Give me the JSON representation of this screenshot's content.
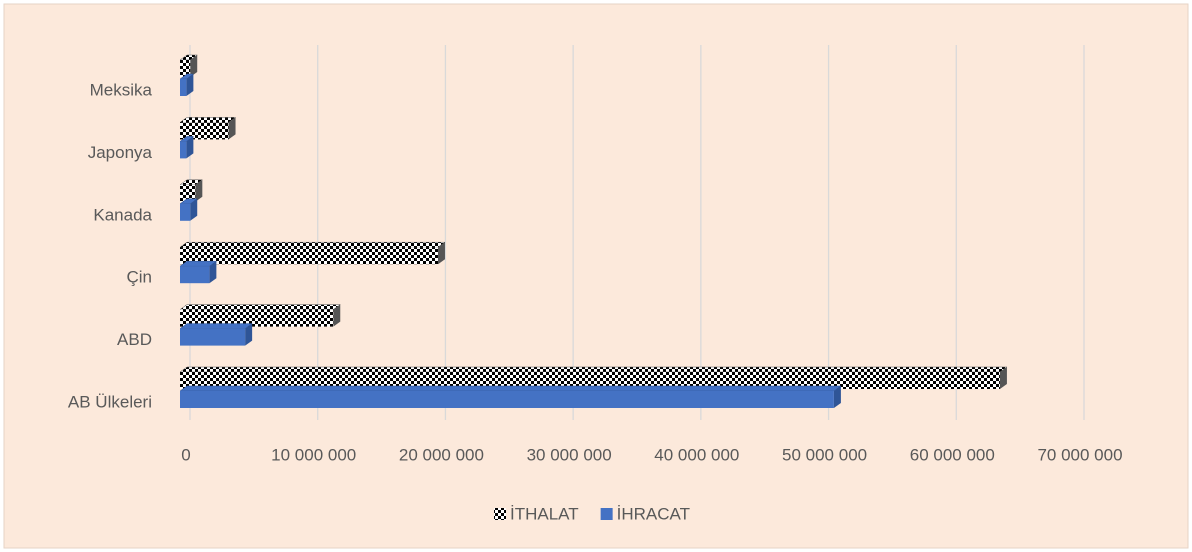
{
  "chart_data": {
    "type": "bar",
    "orientation": "horizontal",
    "three_d": true,
    "categories": [
      "AB Ülkeleri",
      "ABD",
      "Çin",
      "Kanada",
      "Japonya",
      "Meksika"
    ],
    "series": [
      {
        "name": "İTHALAT",
        "color": "#000000",
        "pattern": "checkerboard",
        "values": [
          64200000,
          12000000,
          20200000,
          1200000,
          3800000,
          800000
        ]
      },
      {
        "name": "İHRACAT",
        "color": "#4472c4",
        "values": [
          51200000,
          5100000,
          2300000,
          800000,
          500000,
          500000
        ]
      }
    ],
    "xlim": [
      0,
      70000000
    ],
    "xticks": [
      0,
      {
        "value": 10000000,
        "label": "10 000 000"
      },
      {
        "value": 20000000,
        "label": "20 000 000"
      },
      {
        "value": 30000000,
        "label": "30 000 000"
      },
      {
        "value": 40000000,
        "label": "40 000 000"
      },
      {
        "value": 50000000,
        "label": "50 000 000"
      },
      {
        "value": 60000000,
        "label": "60 000 000"
      },
      {
        "value": 70000000,
        "label": "70 000 000"
      }
    ],
    "grid": true,
    "legend": "bottom"
  }
}
